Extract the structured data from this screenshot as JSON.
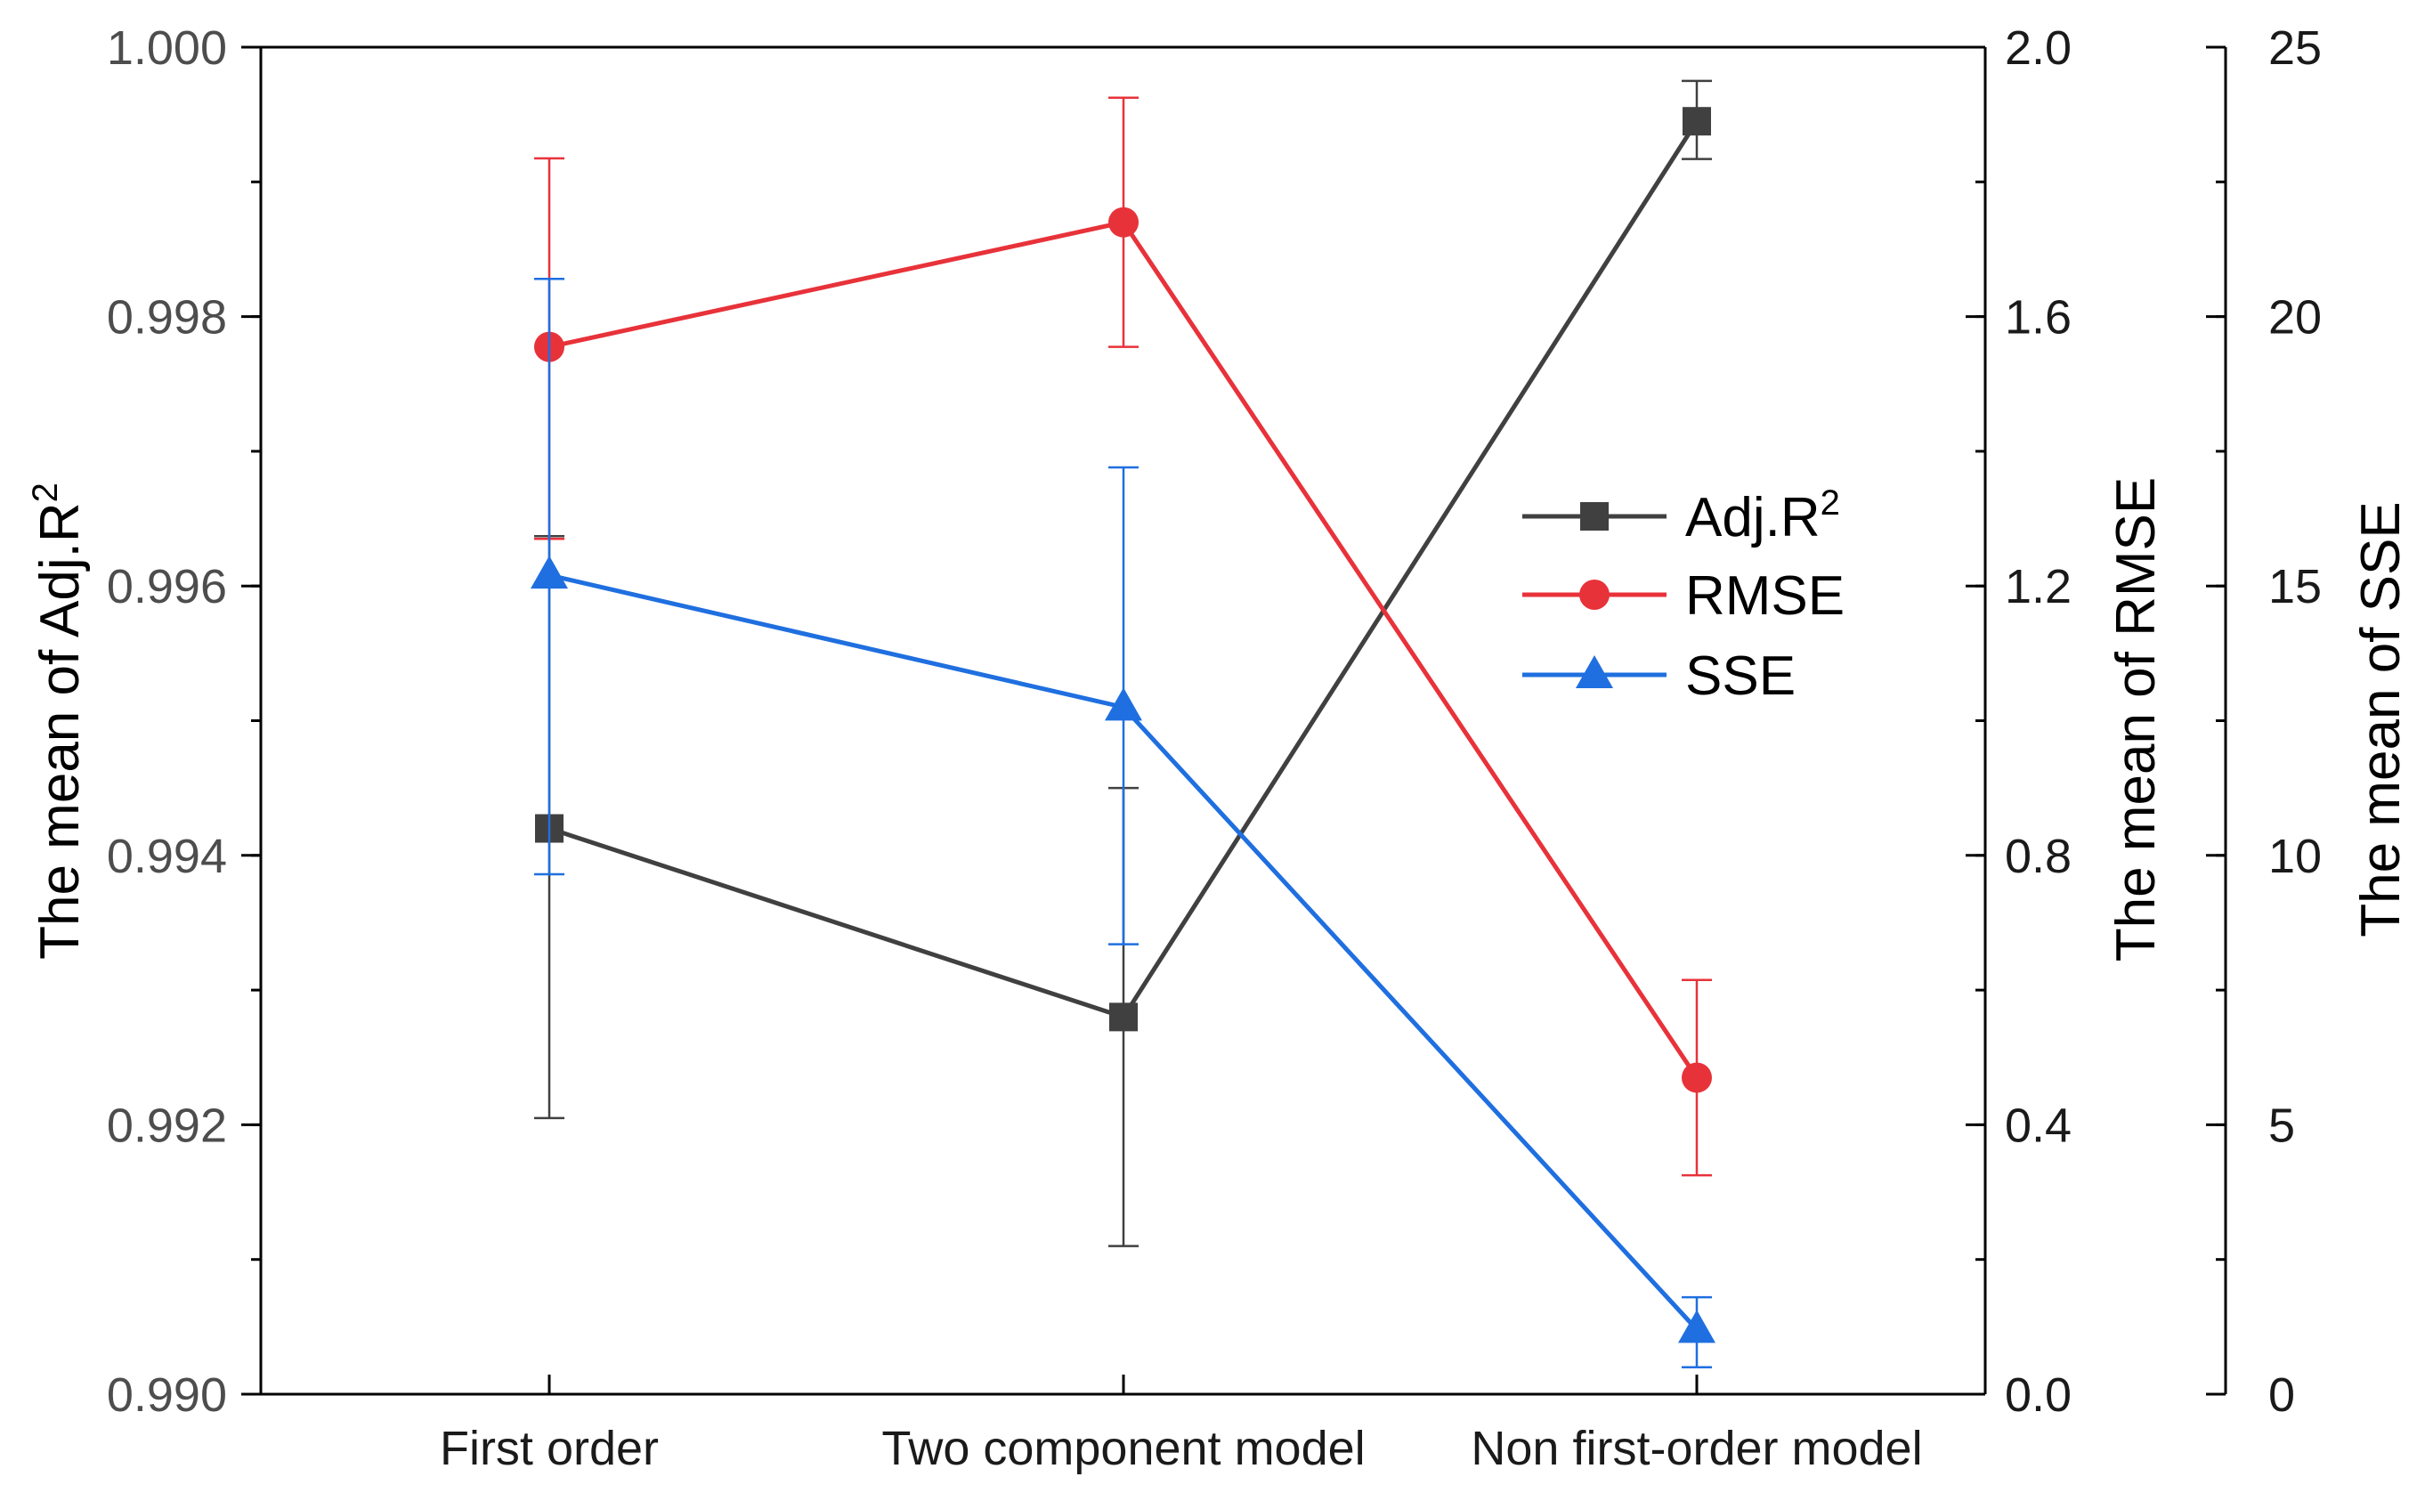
{
  "chart_data": {
    "type": "line",
    "categories": [
      "First order",
      "Two component model",
      "Non first-order model"
    ],
    "axes": {
      "left": {
        "label_prefix": "The mean of Adj.R",
        "label_superscript": "2",
        "ylim": [
          0.99,
          1.0
        ],
        "ticks": [
          "0.990",
          "0.992",
          "0.994",
          "0.996",
          "0.998",
          "1.000"
        ],
        "tick_values": [
          0.99,
          0.992,
          0.994,
          0.996,
          0.998,
          1.0
        ],
        "minor_step": 0.001
      },
      "right1": {
        "label": "The mean of RMSE",
        "ylim": [
          0.0,
          2.0
        ],
        "ticks": [
          "0.0",
          "0.4",
          "0.8",
          "1.2",
          "1.6",
          "2.0"
        ],
        "tick_values": [
          0.0,
          0.4,
          0.8,
          1.2,
          1.6,
          2.0
        ],
        "minor_step": 0.2
      },
      "right2": {
        "label": "The mean of SSE",
        "ylim": [
          0,
          25
        ],
        "ticks": [
          "0",
          "5",
          "10",
          "15",
          "20",
          "25"
        ],
        "tick_values": [
          0,
          5,
          10,
          15,
          20,
          25
        ],
        "minor_step": 2.5
      }
    },
    "series": [
      {
        "name": "Adj.R",
        "name_superscript": "2",
        "axis": "left",
        "color": "#404040",
        "marker": "square",
        "values": [
          0.9942,
          0.9928,
          0.99945
        ],
        "err_low": [
          0.99205,
          0.9911,
          0.99917
        ],
        "err_high": [
          0.99637,
          0.9945,
          0.99975
        ]
      },
      {
        "name": "RMSE",
        "axis": "right1",
        "color": "#e8323a",
        "marker": "circle",
        "values": [
          1.555,
          1.74,
          0.47
        ],
        "err_low": [
          1.27,
          1.555,
          0.325
        ],
        "err_high": [
          1.835,
          1.925,
          0.615
        ]
      },
      {
        "name": "SSE",
        "axis": "right2",
        "color": "#1f6fe0",
        "marker": "triangle",
        "values": [
          15.2,
          12.75,
          1.2
        ],
        "err_low": [
          9.65,
          8.35,
          0.5
        ],
        "err_high": [
          20.7,
          17.2,
          1.8
        ]
      }
    ],
    "legend": {
      "position": "center-right"
    }
  }
}
